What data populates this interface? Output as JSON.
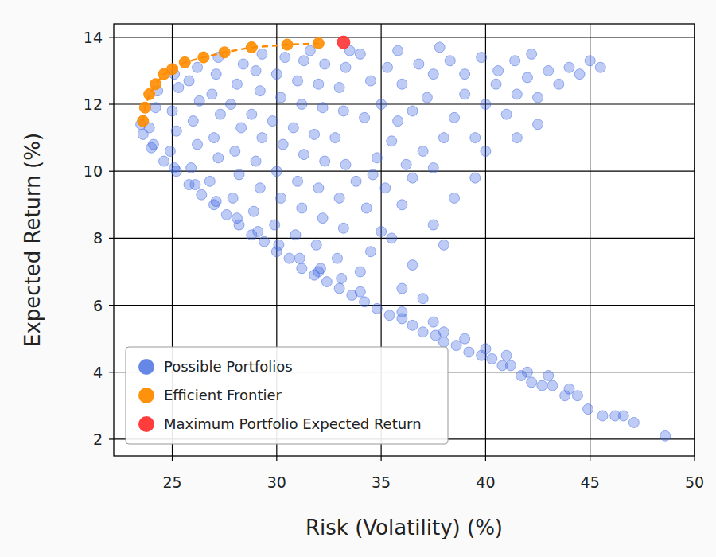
{
  "chart_data": {
    "type": "scatter",
    "x_label": "Risk (Volatility) (%)",
    "y_label": "Expected Return (%)",
    "xlim": [
      22.2,
      50
    ],
    "ylim": [
      1.5,
      14.4
    ],
    "xticks": [
      25,
      30,
      35,
      40,
      45,
      50
    ],
    "yticks": [
      2,
      4,
      6,
      8,
      10,
      12,
      14
    ],
    "grid": true,
    "legend": "lower left",
    "series": [
      {
        "name": "Possible Portfolios",
        "color": "#4169e1",
        "marker": "circle",
        "x": [
          48.6,
          47.1,
          46.6,
          46.2,
          45.6,
          44.9,
          44.4,
          43.8,
          43.2,
          42.7,
          42.2,
          41.7,
          41.2,
          40.8,
          40.3,
          39.8,
          39.2,
          38.6,
          38.0,
          37.6,
          37.0,
          36.5,
          36.0,
          35.4,
          34.8,
          34.2,
          33.6,
          33.0,
          32.4,
          31.8,
          31.2,
          30.6,
          30.0,
          29.4,
          28.8,
          28.2,
          27.6,
          27.0,
          26.4,
          25.8,
          25.2,
          24.6,
          24.0,
          23.6,
          23.5,
          44.0,
          42.0,
          40.0,
          38.0,
          36.0,
          34.0,
          32.0,
          37.5,
          39.0,
          41.0,
          43.0,
          24.1,
          23.9,
          24.2,
          24.3,
          25.1,
          24.9,
          25.2,
          25.0,
          25.3,
          25.1,
          26.1,
          25.9,
          26.2,
          26.0,
          26.3,
          25.8,
          26.2,
          27.1,
          26.8,
          27.2,
          27.0,
          27.3,
          26.9,
          27.1,
          27.2,
          28.1,
          27.9,
          28.2,
          28.0,
          28.3,
          27.8,
          28.1,
          28.4,
          29.1,
          28.9,
          29.2,
          29.0,
          29.3,
          28.8,
          29.2,
          29.0,
          29.3,
          30.1,
          29.9,
          30.2,
          30.0,
          30.3,
          29.8,
          30.2,
          30.0,
          30.4,
          31.1,
          30.9,
          31.2,
          31.0,
          31.3,
          30.8,
          31.2,
          31.0,
          31.3,
          32.1,
          31.9,
          32.2,
          32.0,
          32.3,
          31.8,
          32.2,
          32.0,
          32.3,
          31.6,
          33.1,
          32.9,
          33.2,
          33.0,
          33.3,
          32.8,
          33.2,
          33.0,
          33.3,
          33.5,
          34.0,
          34.5,
          35.0,
          34.3,
          35.2,
          36.0,
          35.5,
          36.5,
          34.8,
          35.5,
          36.2,
          37.0,
          37.5,
          38.0,
          34.2,
          35.0,
          35.8,
          36.5,
          37.2,
          38.5,
          39.0,
          39.5,
          40.0,
          40.5,
          41.0,
          41.5,
          42.0,
          42.5,
          43.0,
          43.5,
          44.0,
          44.5,
          45.5,
          45.0,
          34.5,
          35.3,
          36.0,
          36.8,
          37.5,
          38.3,
          39.0,
          39.8,
          40.6,
          41.4,
          42.2,
          34.0,
          35.8,
          37.8,
          36.5,
          37.5,
          38.5,
          39.5,
          36.0,
          38.0,
          40.0,
          41.5,
          42.5,
          37.0,
          33.8,
          34.6
        ],
        "values": [
          2.1,
          2.5,
          2.7,
          2.7,
          2.7,
          2.9,
          3.3,
          3.3,
          3.6,
          3.6,
          3.7,
          3.9,
          4.2,
          4.2,
          4.4,
          4.5,
          4.6,
          4.8,
          4.9,
          5.1,
          5.2,
          5.4,
          5.6,
          5.7,
          5.9,
          6.1,
          6.3,
          6.5,
          6.7,
          6.9,
          7.1,
          7.4,
          7.6,
          7.9,
          8.1,
          8.4,
          8.7,
          9.0,
          9.3,
          9.6,
          10.0,
          10.3,
          10.7,
          11.1,
          11.4,
          3.5,
          4.0,
          4.7,
          5.2,
          5.8,
          6.4,
          7.0,
          5.5,
          5.0,
          4.5,
          3.9,
          10.8,
          11.3,
          11.9,
          12.4,
          10.1,
          10.6,
          11.2,
          11.8,
          12.5,
          12.9,
          9.6,
          10.1,
          10.8,
          11.5,
          12.1,
          12.7,
          13.1,
          9.1,
          9.7,
          10.4,
          11.0,
          11.7,
          12.3,
          12.9,
          13.4,
          8.6,
          9.2,
          9.9,
          10.6,
          11.3,
          12.0,
          12.6,
          13.2,
          8.2,
          8.8,
          9.5,
          10.3,
          11.0,
          11.7,
          12.4,
          13.0,
          13.5,
          7.8,
          8.4,
          9.2,
          10.0,
          10.8,
          11.5,
          12.2,
          12.9,
          13.4,
          7.4,
          8.1,
          8.9,
          9.7,
          10.5,
          11.3,
          12.0,
          12.7,
          13.3,
          7.1,
          7.8,
          8.6,
          9.5,
          10.3,
          11.1,
          11.9,
          12.6,
          13.2,
          13.6,
          6.8,
          7.4,
          8.3,
          9.2,
          10.2,
          11.0,
          11.8,
          12.5,
          13.1,
          13.6,
          7.0,
          7.6,
          8.2,
          8.9,
          9.5,
          9.0,
          8.0,
          9.8,
          10.4,
          10.9,
          10.2,
          10.6,
          10.1,
          11.0,
          11.6,
          12.0,
          11.5,
          11.8,
          12.2,
          11.6,
          12.3,
          11.0,
          12.0,
          12.6,
          11.7,
          12.3,
          12.8,
          12.2,
          13.0,
          12.6,
          13.1,
          12.9,
          13.1,
          13.3,
          12.7,
          13.1,
          12.6,
          13.2,
          12.9,
          13.3,
          12.9,
          13.4,
          13.0,
          13.3,
          13.5,
          13.5,
          13.6,
          13.7,
          7.2,
          8.4,
          9.2,
          9.8,
          6.5,
          7.8,
          10.6,
          11.0,
          11.4,
          6.2,
          9.7,
          9.9
        ]
      },
      {
        "name": "Efficient Frontier",
        "color": "#ff8c00",
        "marker": "circle",
        "line_style": "dashed",
        "x": [
          23.6,
          23.7,
          23.9,
          24.2,
          24.6,
          25.0,
          25.6,
          26.5,
          27.5,
          28.8,
          30.5,
          32.0
        ],
        "values": [
          11.5,
          11.9,
          12.3,
          12.6,
          12.9,
          13.05,
          13.25,
          13.4,
          13.55,
          13.7,
          13.78,
          13.82
        ]
      },
      {
        "name": "Maximum Portfolio Expected Return",
        "color": "#ff3333",
        "marker": "circle",
        "x": [
          33.2
        ],
        "values": [
          13.85
        ]
      }
    ]
  }
}
